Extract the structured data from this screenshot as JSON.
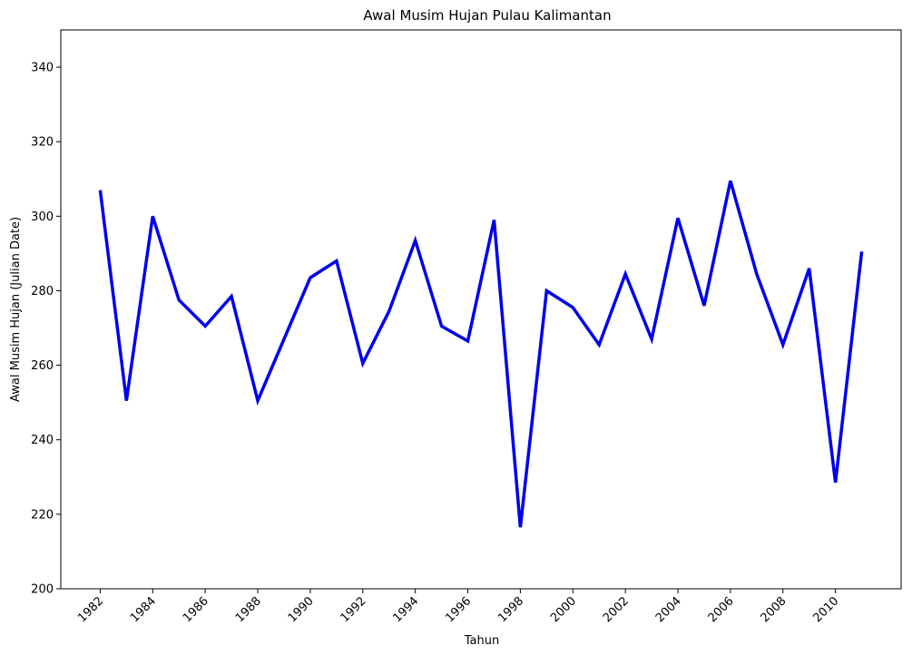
{
  "chart_data": {
    "type": "line",
    "title": "Awal Musim Hujan Pulau Kalimantan",
    "xlabel": "Tahun",
    "ylabel": "Awal Musim Hujan (Julian Date)",
    "ylim": [
      200,
      350
    ],
    "xlim": [
      1980.5,
      2012.5
    ],
    "yticks": [
      200,
      220,
      240,
      260,
      280,
      300,
      320,
      340
    ],
    "xticks": [
      1982,
      1984,
      1986,
      1988,
      1990,
      1992,
      1994,
      1996,
      1998,
      2000,
      2002,
      2004,
      2006,
      2008,
      2010
    ],
    "grid": false,
    "series": [
      {
        "color": "#0000ee",
        "x": [
          1982,
          1983,
          1984,
          1985,
          1986,
          1987,
          1988,
          1989,
          1990,
          1991,
          1992,
          1993,
          1994,
          1995,
          1996,
          1997,
          1998,
          1999,
          2000,
          2001,
          2002,
          2003,
          2004,
          2005,
          2006,
          2007,
          2008,
          2009,
          2010,
          2011
        ],
        "values": [
          307,
          250.5,
          300,
          277.5,
          270.5,
          278.5,
          250.5,
          267,
          283.5,
          288,
          260.5,
          274.5,
          293.5,
          270.5,
          266.5,
          299,
          216.5,
          280,
          275.5,
          265.5,
          284.5,
          267,
          299.5,
          276,
          309.5,
          284.5,
          265.5,
          286,
          228.5,
          290.5
        ]
      }
    ]
  }
}
